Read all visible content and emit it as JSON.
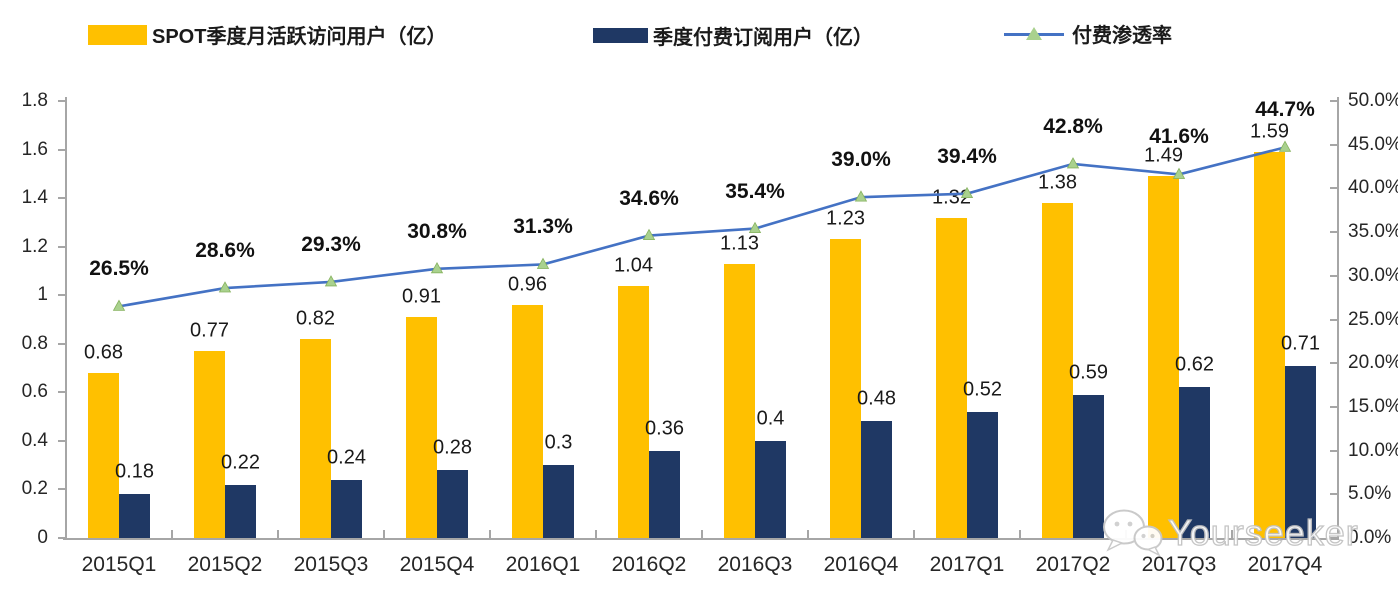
{
  "watermark": {
    "text": "Yourseeker",
    "icon": "wechat-icon"
  },
  "colors": {
    "mau_bar": "#FFC000",
    "subs_bar": "#1F3864",
    "rate_line": "#4472C4",
    "rate_marker": "#A9D18E",
    "axis_line": "#a6a6a6",
    "text": "#262626"
  },
  "chart_data": {
    "type": "bar",
    "subtype": "combo-bar-line-dual-axis",
    "title": "",
    "categories": [
      "2015Q1",
      "2015Q2",
      "2015Q3",
      "2015Q4",
      "2016Q1",
      "2016Q2",
      "2016Q3",
      "2016Q4",
      "2017Q1",
      "2017Q2",
      "2017Q3",
      "2017Q4"
    ],
    "series": [
      {
        "name": "SPOT季度月活跃访问用户（亿）",
        "type": "bar",
        "axis": "left",
        "color": "#FFC000",
        "values": [
          0.68,
          0.77,
          0.82,
          0.91,
          0.96,
          1.04,
          1.13,
          1.23,
          1.32,
          1.38,
          1.49,
          1.59
        ],
        "labels": [
          "0.68",
          "0.77",
          "0.82",
          "0.91",
          "0.96",
          "1.04",
          "1.13",
          "1.23",
          "1.32",
          "1.38",
          "1.49",
          "1.59"
        ]
      },
      {
        "name": "季度付费订阅用户（亿）",
        "type": "bar",
        "axis": "left",
        "color": "#1F3864",
        "values": [
          0.18,
          0.22,
          0.24,
          0.28,
          0.3,
          0.36,
          0.4,
          0.48,
          0.52,
          0.59,
          0.62,
          0.71
        ],
        "labels": [
          "0.18",
          "0.22",
          "0.24",
          "0.28",
          "0.3",
          "0.36",
          "0.4",
          "0.48",
          "0.52",
          "0.59",
          "0.62",
          "0.71"
        ]
      },
      {
        "name": "付费渗透率",
        "type": "line",
        "axis": "right",
        "color": "#4472C4",
        "marker": "triangle",
        "marker_color": "#A9D18E",
        "values": [
          26.5,
          28.6,
          29.3,
          30.8,
          31.3,
          34.6,
          35.4,
          39.0,
          39.4,
          42.8,
          41.6,
          44.7
        ],
        "labels": [
          "26.5%",
          "28.6%",
          "29.3%",
          "30.8%",
          "31.3%",
          "34.6%",
          "35.4%",
          "39.0%",
          "39.4%",
          "42.8%",
          "41.6%",
          "44.7%"
        ]
      }
    ],
    "left_axis": {
      "min": 0,
      "max": 1.8,
      "step": 0.2,
      "ticks": [
        "0",
        "0.2",
        "0.4",
        "0.6",
        "0.8",
        "1",
        "1.2",
        "1.4",
        "1.6",
        "1.8"
      ]
    },
    "right_axis": {
      "min": 0,
      "max": 50,
      "step": 5,
      "ticks": [
        "0.0%",
        "5.0%",
        "10.0%",
        "15.0%",
        "20.0%",
        "25.0%",
        "30.0%",
        "35.0%",
        "40.0%",
        "45.0%",
        "50.0%"
      ]
    },
    "grid": false,
    "legend_position": "top"
  }
}
